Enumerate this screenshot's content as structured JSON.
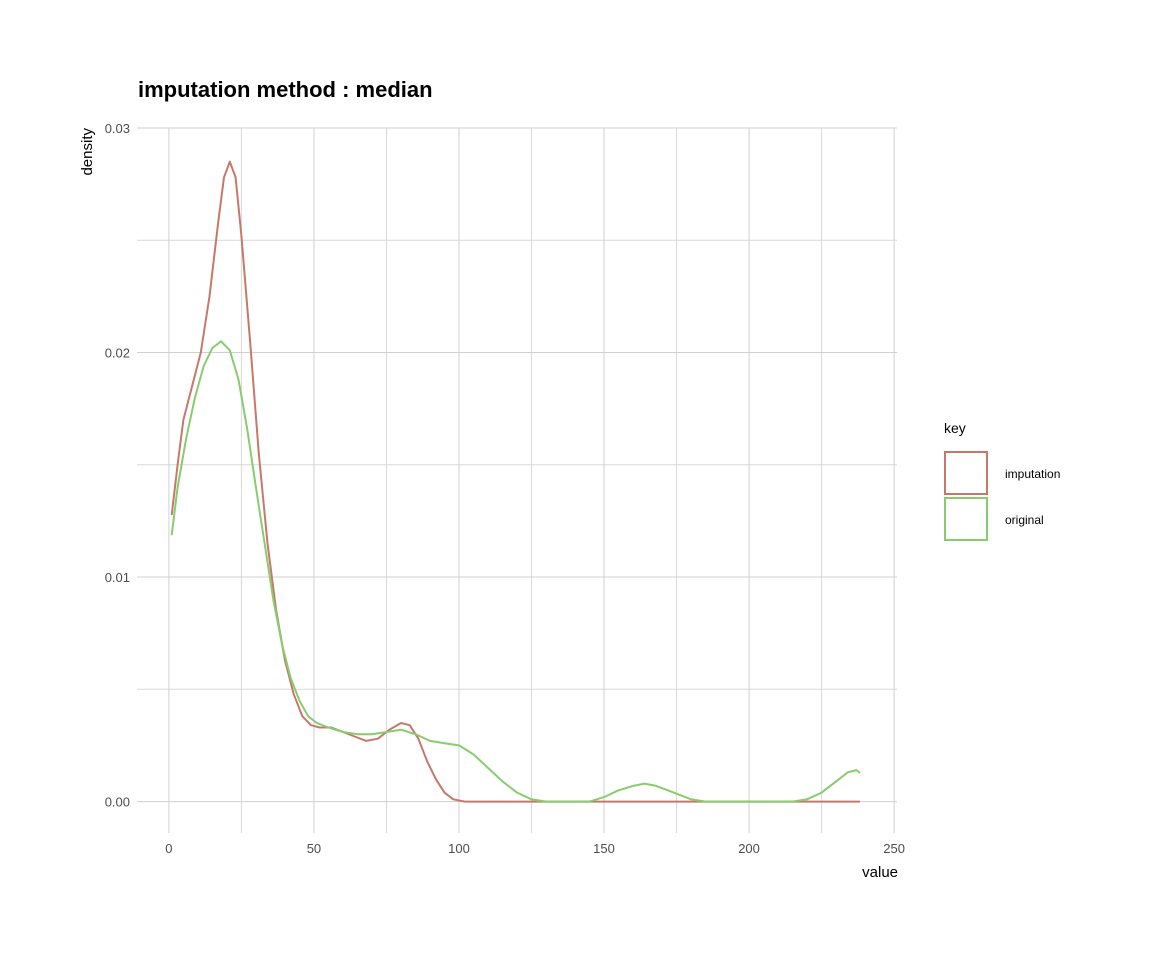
{
  "chart_data": {
    "type": "line",
    "title": "imputation method : median",
    "xlabel": "value",
    "ylabel": "density",
    "xlim": [
      -11,
      251
    ],
    "ylim": [
      -0.0014,
      0.03
    ],
    "x_ticks": [
      0,
      50,
      100,
      150,
      200,
      250
    ],
    "x_tick_labels": [
      "0",
      "50",
      "100",
      "150",
      "200",
      "250"
    ],
    "x_minor_ticks": [
      25,
      75,
      125,
      175,
      225
    ],
    "y_ticks": [
      0.0,
      0.01,
      0.02,
      0.03
    ],
    "y_tick_labels": [
      "0.00",
      "0.01",
      "0.02",
      "0.03"
    ],
    "y_minor_ticks": [
      0.005,
      0.015,
      0.025
    ],
    "grid": true,
    "legend": {
      "title": "key",
      "placement": "right"
    },
    "series": [
      {
        "name": "imputation",
        "color": "#c8776b",
        "points": [
          [
            1,
            0.0128
          ],
          [
            3,
            0.015
          ],
          [
            5,
            0.017
          ],
          [
            8,
            0.0185
          ],
          [
            11,
            0.02
          ],
          [
            14,
            0.0225
          ],
          [
            17,
            0.0258
          ],
          [
            19,
            0.0278
          ],
          [
            21,
            0.0285
          ],
          [
            23,
            0.0278
          ],
          [
            25,
            0.0252
          ],
          [
            28,
            0.0205
          ],
          [
            31,
            0.0155
          ],
          [
            34,
            0.0115
          ],
          [
            37,
            0.0085
          ],
          [
            40,
            0.0063
          ],
          [
            43,
            0.0048
          ],
          [
            46,
            0.0038
          ],
          [
            49,
            0.0034
          ],
          [
            52,
            0.0033
          ],
          [
            56,
            0.0033
          ],
          [
            60,
            0.0031
          ],
          [
            64,
            0.0029
          ],
          [
            68,
            0.0027
          ],
          [
            72,
            0.0028
          ],
          [
            76,
            0.0032
          ],
          [
            80,
            0.0035
          ],
          [
            83,
            0.0034
          ],
          [
            86,
            0.0028
          ],
          [
            89,
            0.0018
          ],
          [
            92,
            0.001
          ],
          [
            95,
            0.0004
          ],
          [
            98,
            0.0001
          ],
          [
            102,
            0.0
          ],
          [
            110,
            0.0
          ],
          [
            140,
            0.0
          ],
          [
            180,
            0.0
          ],
          [
            220,
            0.0
          ],
          [
            238,
            0.0
          ]
        ]
      },
      {
        "name": "original",
        "color": "#88cc70",
        "points": [
          [
            1,
            0.0119
          ],
          [
            3,
            0.014
          ],
          [
            6,
            0.0162
          ],
          [
            9,
            0.018
          ],
          [
            12,
            0.0194
          ],
          [
            15,
            0.0202
          ],
          [
            18,
            0.0205
          ],
          [
            21,
            0.0201
          ],
          [
            24,
            0.0188
          ],
          [
            27,
            0.0166
          ],
          [
            30,
            0.014
          ],
          [
            33,
            0.0115
          ],
          [
            36,
            0.009
          ],
          [
            39,
            0.007
          ],
          [
            42,
            0.0055
          ],
          [
            45,
            0.0045
          ],
          [
            48,
            0.0038
          ],
          [
            51,
            0.0035
          ],
          [
            55,
            0.0033
          ],
          [
            60,
            0.0031
          ],
          [
            65,
            0.003
          ],
          [
            70,
            0.003
          ],
          [
            75,
            0.0031
          ],
          [
            80,
            0.0032
          ],
          [
            85,
            0.003
          ],
          [
            90,
            0.0027
          ],
          [
            95,
            0.0026
          ],
          [
            100,
            0.0025
          ],
          [
            105,
            0.0021
          ],
          [
            110,
            0.0015
          ],
          [
            115,
            0.0009
          ],
          [
            120,
            0.0004
          ],
          [
            125,
            0.0001
          ],
          [
            130,
            0.0
          ],
          [
            135,
            0.0
          ],
          [
            140,
            0.0
          ],
          [
            145,
            0.0
          ],
          [
            150,
            0.0002
          ],
          [
            155,
            0.0005
          ],
          [
            160,
            0.0007
          ],
          [
            164,
            0.0008
          ],
          [
            168,
            0.0007
          ],
          [
            172,
            0.0005
          ],
          [
            176,
            0.0003
          ],
          [
            180,
            0.0001
          ],
          [
            185,
            0.0
          ],
          [
            190,
            0.0
          ],
          [
            200,
            0.0
          ],
          [
            210,
            0.0
          ],
          [
            215,
            0.0
          ],
          [
            220,
            0.0001
          ],
          [
            225,
            0.0004
          ],
          [
            230,
            0.0009
          ],
          [
            234,
            0.0013
          ],
          [
            237,
            0.0014
          ],
          [
            238,
            0.0013
          ]
        ]
      }
    ]
  }
}
